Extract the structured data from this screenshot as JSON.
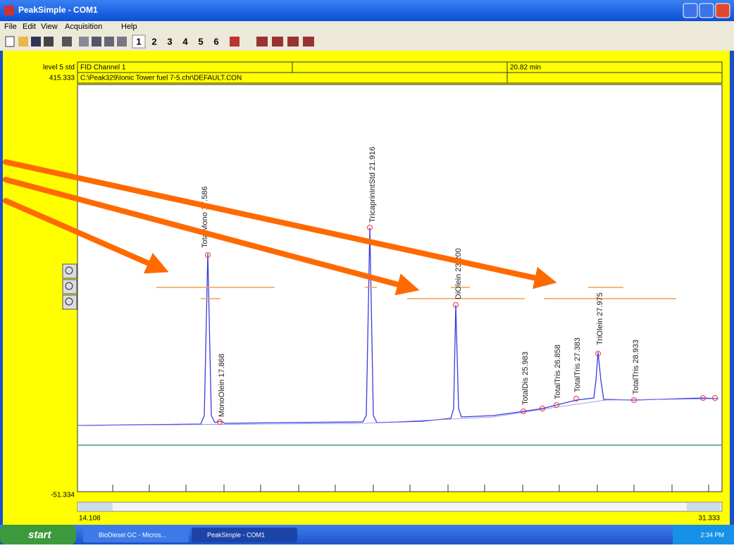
{
  "window": {
    "title": "PeakSimple - COM1"
  },
  "menu": [
    "File",
    "Edit",
    "View",
    "Acquisition",
    "Help"
  ],
  "toolbar": {
    "channels": [
      "1",
      "2",
      "3",
      "4",
      "5",
      "6"
    ]
  },
  "header": {
    "level": "level 5 std",
    "channel": "FID Channel 1",
    "time": "20.82 min",
    "y_max": "415.333",
    "file": "C:\\Peak329\\Ionic Tower fuel 7-5.chr\\DEFAULT.CON"
  },
  "peaks": [
    "TotalMono 17.586",
    "MonoOlein 17.868",
    "TricaprinIntStd 21.916",
    "DiOlein 23.200",
    "TotalDis 25.983",
    "TotalTris 26.858",
    "TotalTris 27.383",
    "TriOlein 27.975",
    "TotalTris 28.933"
  ],
  "axis": {
    "y_min": "-51.334",
    "x_start": "14.108",
    "x_end": "31.333"
  },
  "taskbar": {
    "start": "start",
    "tasks": [
      "BioDiesel GC - Micros...",
      "PeakSimple - COM1"
    ],
    "clock": "2:34 PM"
  }
}
